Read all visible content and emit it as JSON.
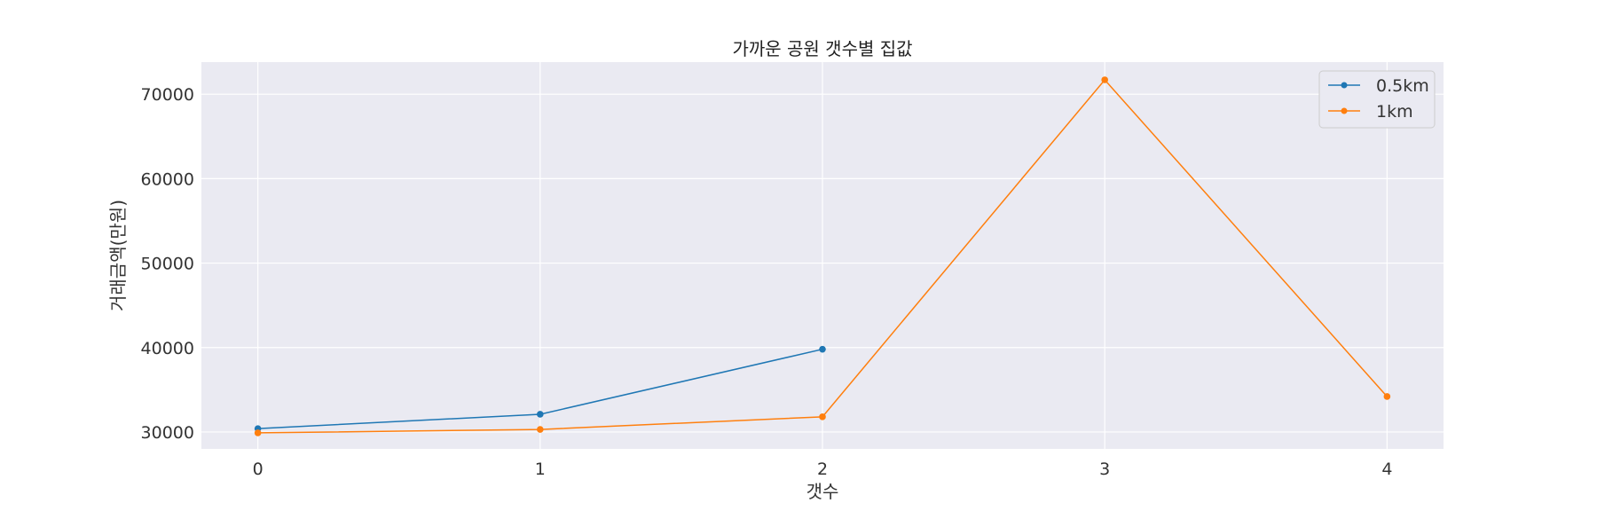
{
  "chart_data": {
    "type": "line",
    "title": "가까운 공원 갯수별 집값",
    "xlabel": "갯수",
    "ylabel": "거래금액(만원)",
    "xlim": [
      -0.2,
      4.2
    ],
    "ylim": [
      28000,
      73800
    ],
    "x_ticks": [
      0,
      1,
      2,
      3,
      4
    ],
    "y_ticks": [
      30000,
      40000,
      50000,
      60000,
      70000
    ],
    "grid": true,
    "background": "#eaeaf2",
    "legend_position": "top-right",
    "series": [
      {
        "name": "0.5km",
        "color": "#1f77b4",
        "x": [
          0,
          1,
          2
        ],
        "values": [
          30400,
          32100,
          39800
        ]
      },
      {
        "name": "1km",
        "color": "#ff7f0e",
        "x": [
          0,
          1,
          2,
          3,
          4
        ],
        "values": [
          29900,
          30300,
          31800,
          71700,
          34200
        ]
      }
    ]
  }
}
